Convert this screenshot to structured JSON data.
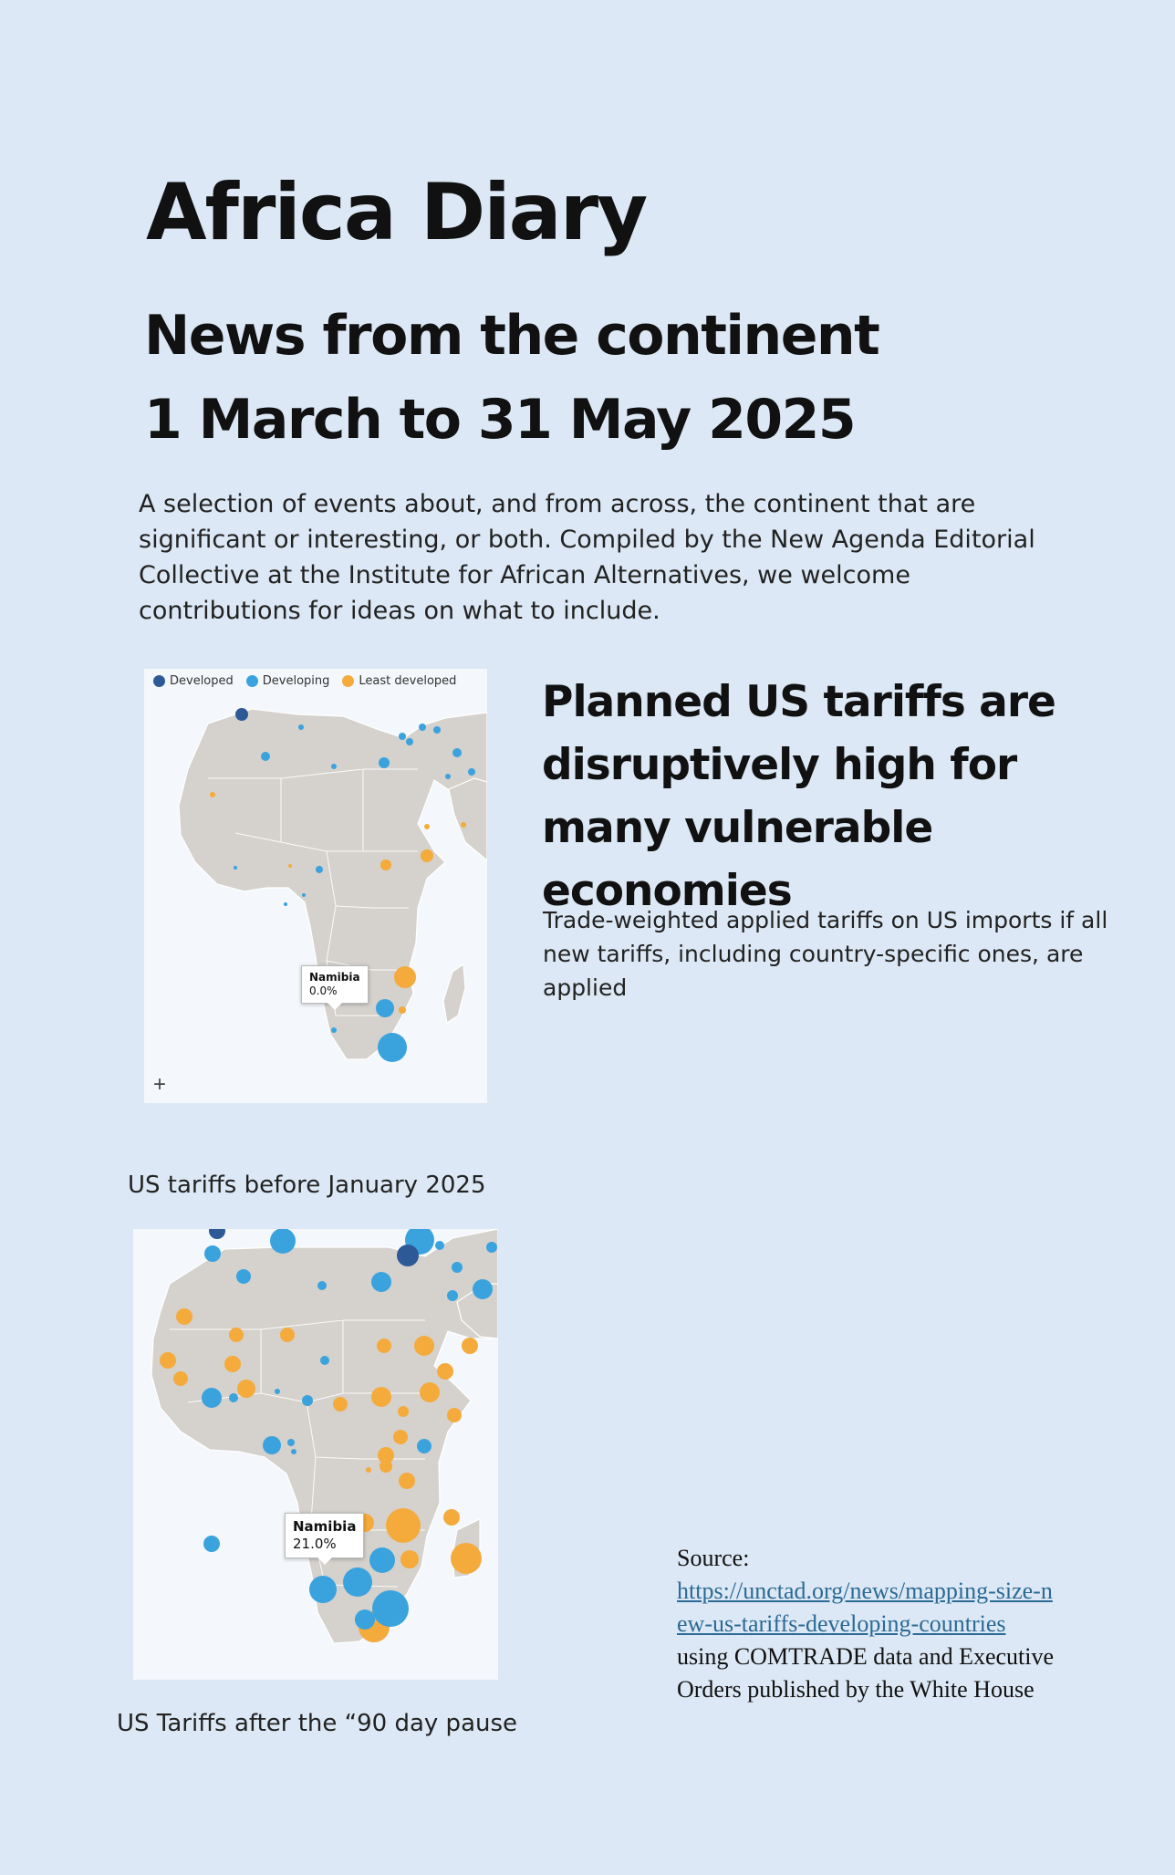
{
  "header": {
    "title": "Africa Diary",
    "subtitle_line1": "News from the continent",
    "subtitle_line2": "1 March to 31 May 2025"
  },
  "intro": "A selection of events about, and from across, the continent that are significant or interesting, or both. Compiled by the New Agenda Editorial Collective at the Institute for African Alternatives, we welcome contributions for ideas on what to include.",
  "feature": {
    "headline": "Planned US tariffs are disruptively high for many vulnerable economies",
    "description": "Trade-weighted applied tariffs on US imports if all new tariffs, including country-specific ones, are applied"
  },
  "legend": [
    {
      "label": "Developed",
      "color": "#2d5a96"
    },
    {
      "label": "Developing",
      "color": "#3aa3de"
    },
    {
      "label": "Least developed",
      "color": "#f4ab3c"
    }
  ],
  "map_before": {
    "caption": "US tariffs before January 2025",
    "tooltip_country": "Namibia",
    "tooltip_value": "0.0%",
    "zoom_label": "+"
  },
  "map_after": {
    "caption": "US Tariffs after the “90 day pause",
    "tooltip_country": "Namibia",
    "tooltip_value": "21.0%"
  },
  "source": {
    "label": "Source:",
    "url": "https://unctad.org/news/mapping-size-new-us-tariffs-developing-countries",
    "note": "using COMTRADE data and Executive Orders published by the White House"
  }
}
